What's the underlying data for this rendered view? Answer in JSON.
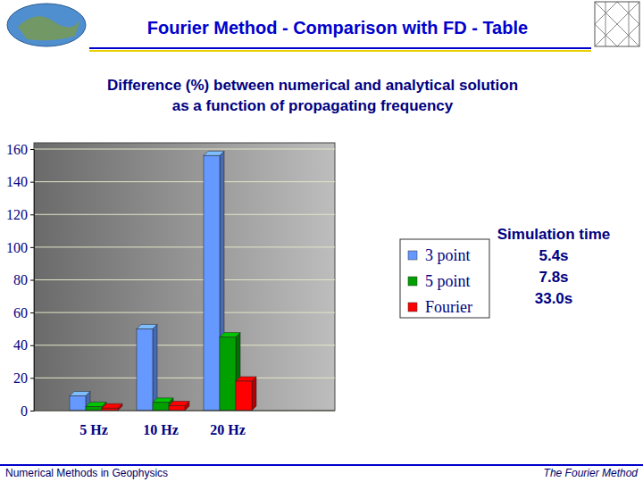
{
  "slide": {
    "header": "Fourier Method - Comparison with FD - Table",
    "footer_left": "Numerical Methods in Geophysics",
    "footer_right": "The Fourier Method"
  },
  "chart_data": {
    "type": "bar",
    "title": "Difference (%) between numerical  and analytical solution\nas a function of propagating frequency",
    "categories": [
      "5 Hz",
      "10 Hz",
      "20 Hz"
    ],
    "series": [
      {
        "name": "3 point",
        "color": "#6699ff",
        "values": [
          9,
          50,
          156
        ]
      },
      {
        "name": "5 point",
        "color": "#00a000",
        "values": [
          2.5,
          5,
          45
        ]
      },
      {
        "name": "Fourier",
        "color": "#ff0000",
        "values": [
          1.5,
          3,
          18
        ]
      }
    ],
    "ylim": [
      0,
      160
    ],
    "yticks": [
      0,
      20,
      40,
      60,
      80,
      100,
      120,
      140,
      160
    ],
    "grid": true,
    "legend": "right",
    "simulation_time": {
      "title": "Simulation time",
      "labels": [
        "5.4s",
        "7.8s",
        "33.0s"
      ]
    }
  }
}
